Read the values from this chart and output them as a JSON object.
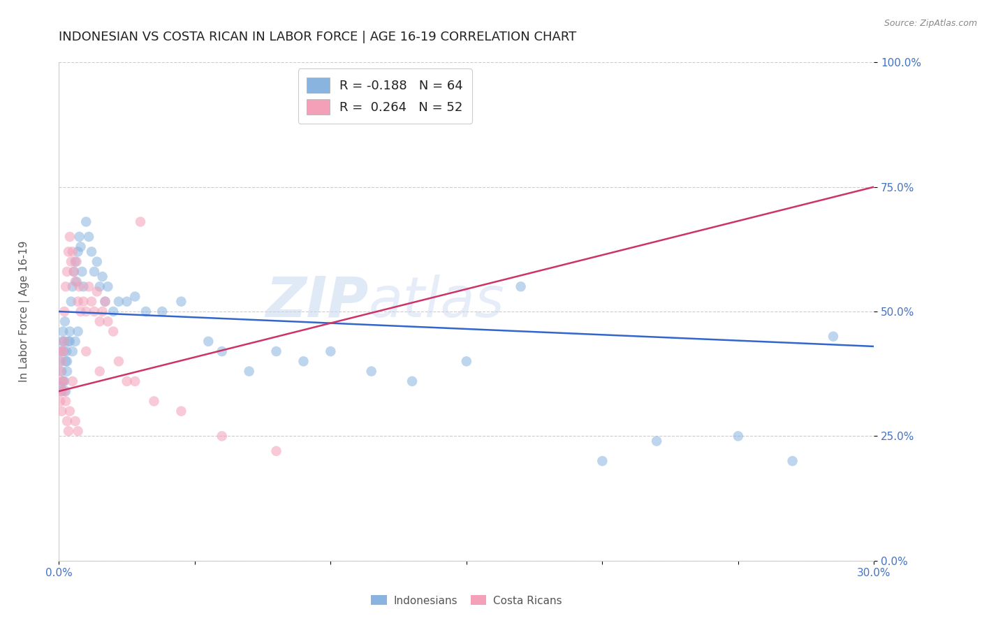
{
  "title": "INDONESIAN VS COSTA RICAN IN LABOR FORCE | AGE 16-19 CORRELATION CHART",
  "source": "Source: ZipAtlas.com",
  "ylabel": "In Labor Force | Age 16-19",
  "xlim": [
    0.0,
    30.0
  ],
  "ylim": [
    0.0,
    100.0
  ],
  "yticks": [
    0.0,
    25.0,
    50.0,
    75.0,
    100.0
  ],
  "blue_color": "#8ab4e0",
  "pink_color": "#f4a0b8",
  "blue_line_color": "#3366cc",
  "pink_line_color": "#cc3366",
  "legend_blue_label": "R = -0.188   N = 64",
  "legend_pink_label": "R =  0.264   N = 52",
  "legend_indonesians": "Indonesians",
  "legend_costa_ricans": "Costa Ricans",
  "watermark_zip": "ZIP",
  "watermark_atlas": "atlas",
  "title_fontsize": 13,
  "axis_label_fontsize": 11,
  "tick_fontsize": 11,
  "blue_scatter_x": [
    0.05,
    0.08,
    0.1,
    0.12,
    0.15,
    0.18,
    0.2,
    0.22,
    0.25,
    0.28,
    0.3,
    0.35,
    0.4,
    0.45,
    0.5,
    0.55,
    0.6,
    0.65,
    0.7,
    0.75,
    0.8,
    0.85,
    0.9,
    1.0,
    1.1,
    1.2,
    1.3,
    1.4,
    1.5,
    1.6,
    1.7,
    1.8,
    2.0,
    2.2,
    2.5,
    2.8,
    3.2,
    3.8,
    4.5,
    5.5,
    6.0,
    7.0,
    8.0,
    9.0,
    10.0,
    11.5,
    13.0,
    15.0,
    17.0,
    20.0,
    22.0,
    25.0,
    27.0,
    28.5,
    0.05,
    0.1,
    0.15,
    0.2,
    0.25,
    0.3,
    0.4,
    0.5,
    0.6,
    0.7
  ],
  "blue_scatter_y": [
    40,
    42,
    38,
    44,
    46,
    42,
    44,
    48,
    40,
    42,
    38,
    44,
    46,
    52,
    55,
    58,
    60,
    56,
    62,
    65,
    63,
    58,
    55,
    68,
    65,
    62,
    58,
    60,
    55,
    57,
    52,
    55,
    50,
    52,
    52,
    53,
    50,
    50,
    52,
    44,
    42,
    38,
    42,
    40,
    42,
    38,
    36,
    40,
    55,
    20,
    24,
    25,
    20,
    45,
    35,
    34,
    36,
    36,
    34,
    40,
    44,
    42,
    44,
    46
  ],
  "pink_scatter_x": [
    0.05,
    0.08,
    0.1,
    0.12,
    0.15,
    0.18,
    0.2,
    0.25,
    0.3,
    0.35,
    0.4,
    0.45,
    0.5,
    0.55,
    0.6,
    0.65,
    0.7,
    0.75,
    0.8,
    0.9,
    1.0,
    1.1,
    1.2,
    1.3,
    1.4,
    1.5,
    1.6,
    1.7,
    1.8,
    2.0,
    2.2,
    2.5,
    2.8,
    3.5,
    4.5,
    6.0,
    8.0,
    3.0,
    0.05,
    0.08,
    0.1,
    0.15,
    0.2,
    0.25,
    0.3,
    0.35,
    0.4,
    0.5,
    0.6,
    0.7,
    1.0,
    1.5
  ],
  "pink_scatter_y": [
    38,
    42,
    40,
    36,
    42,
    44,
    50,
    55,
    58,
    62,
    65,
    60,
    62,
    58,
    56,
    60,
    52,
    55,
    50,
    52,
    50,
    55,
    52,
    50,
    54,
    48,
    50,
    52,
    48,
    46,
    40,
    36,
    36,
    32,
    30,
    25,
    22,
    68,
    32,
    34,
    30,
    36,
    34,
    32,
    28,
    26,
    30,
    36,
    28,
    26,
    42,
    38
  ],
  "blue_trend_x0": 0.0,
  "blue_trend_y0": 50.0,
  "blue_trend_x1": 30.0,
  "blue_trend_y1": 43.0,
  "pink_trend_x0": 0.0,
  "pink_trend_y0": 34.0,
  "pink_trend_x1": 30.0,
  "pink_trend_y1": 75.0
}
